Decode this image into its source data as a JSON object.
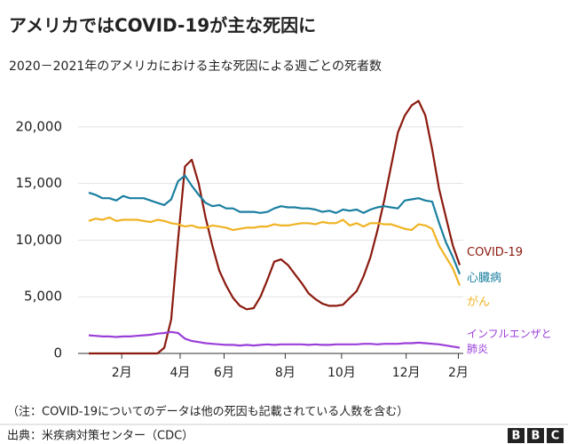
{
  "chart_data": {
    "type": "line",
    "title": "アメリカではCOVID-19が主な死因に",
    "subtitle": "2020－2021年のアメリカにおける主な死因による週ごとの死者数",
    "note": "（注：COVID-19についてのデータは他の死因も記載されている人数を含む）",
    "source": "出典：米疾病対策センター（CDC）",
    "logo": [
      "B",
      "B",
      "C"
    ],
    "x": [
      0,
      1,
      2,
      3,
      4,
      5,
      6,
      7,
      8,
      9,
      10,
      11,
      12,
      13,
      14,
      15,
      16,
      17,
      18,
      19,
      20,
      21,
      22,
      23,
      24,
      25,
      26,
      27,
      28,
      29,
      30,
      31,
      32,
      33,
      34,
      35,
      36,
      37,
      38,
      39,
      40,
      41,
      42,
      43,
      44,
      45,
      46,
      47,
      48,
      49,
      50,
      51,
      52,
      53,
      54
    ],
    "xlim": [
      0,
      54
    ],
    "xticks": [
      {
        "value": 4.8,
        "label": "2月"
      },
      {
        "value": 13.3,
        "label": "4月"
      },
      {
        "value": 19.7,
        "label": "6月"
      },
      {
        "value": 28.6,
        "label": "8月"
      },
      {
        "value": 36.8,
        "label": "10月"
      },
      {
        "value": 46.2,
        "label": "12月"
      },
      {
        "value": 53.8,
        "label": "2月"
      }
    ],
    "ylim": [
      0,
      22500
    ],
    "yticks": [
      0,
      {
        "value": 5000,
        "label": "5,000"
      },
      {
        "value": 10000,
        "label": "10,000"
      },
      {
        "value": 15000,
        "label": "15,000"
      },
      {
        "value": 20000,
        "label": "20,000"
      }
    ],
    "grid": true,
    "series": [
      {
        "name": "COVID-19",
        "color": "#8b1a0e",
        "values": [
          0,
          0,
          0,
          0,
          0,
          0,
          0,
          0,
          0,
          0,
          0,
          500,
          3000,
          10000,
          16500,
          17100,
          15000,
          12000,
          9500,
          7300,
          6000,
          4900,
          4200,
          3900,
          4000,
          5000,
          6500,
          8100,
          8300,
          7800,
          7000,
          6200,
          5300,
          4800,
          4400,
          4200,
          4200,
          4300,
          4900,
          5500,
          6800,
          8500,
          10800,
          13500,
          16500,
          19500,
          21000,
          21900,
          22300,
          21000,
          18000,
          14500,
          12000,
          9500,
          7800
        ]
      },
      {
        "name": "心臓病",
        "color": "#1a7fa0",
        "values": [
          14200,
          14000,
          13700,
          13700,
          13500,
          13900,
          13700,
          13700,
          13700,
          13500,
          13300,
          13100,
          13600,
          15200,
          15700,
          14800,
          14000,
          13300,
          13000,
          13100,
          12800,
          12800,
          12500,
          12500,
          12500,
          12400,
          12500,
          12800,
          13000,
          12900,
          12900,
          12800,
          12800,
          12700,
          12500,
          12600,
          12400,
          12700,
          12600,
          12700,
          12400,
          12700,
          12900,
          13000,
          12900,
          12800,
          13500,
          13600,
          13700,
          13500,
          13400,
          11500,
          9800,
          8500,
          7000
        ]
      },
      {
        "name": "がん",
        "color": "#f0b323",
        "values": [
          11700,
          11900,
          11800,
          12000,
          11700,
          11800,
          11800,
          11800,
          11700,
          11600,
          11800,
          11700,
          11500,
          11400,
          11200,
          11300,
          11100,
          11100,
          11300,
          11200,
          11100,
          10900,
          11000,
          11100,
          11100,
          11200,
          11200,
          11400,
          11300,
          11300,
          11400,
          11500,
          11500,
          11400,
          11600,
          11500,
          11500,
          11800,
          11300,
          11500,
          11200,
          11500,
          11500,
          11400,
          11400,
          11200,
          11000,
          10900,
          11400,
          11300,
          11000,
          9500,
          8500,
          7500,
          6000
        ]
      },
      {
        "name": "インフルエンザと肺炎",
        "color": "#9b3fd9",
        "values": [
          1600,
          1550,
          1500,
          1500,
          1450,
          1500,
          1500,
          1550,
          1600,
          1650,
          1750,
          1800,
          1900,
          1800,
          1300,
          1100,
          1000,
          900,
          850,
          800,
          750,
          750,
          700,
          750,
          700,
          750,
          800,
          750,
          800,
          800,
          800,
          800,
          750,
          800,
          750,
          750,
          800,
          800,
          800,
          800,
          850,
          850,
          800,
          850,
          850,
          850,
          900,
          900,
          950,
          900,
          850,
          800,
          700,
          600,
          500
        ]
      }
    ]
  }
}
